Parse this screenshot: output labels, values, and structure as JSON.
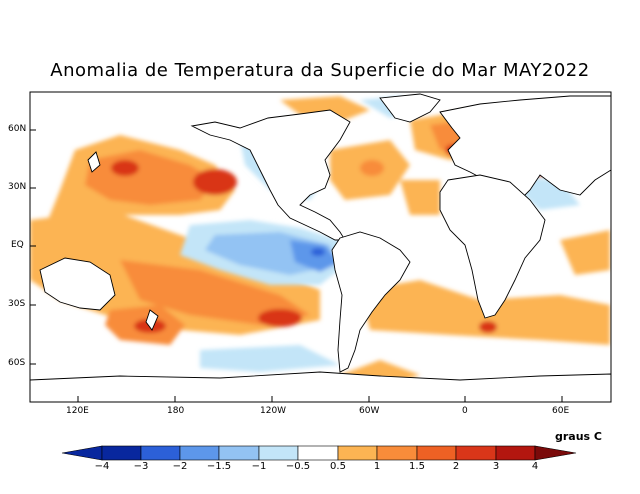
{
  "title": "Anomalia de Temperatura da Superficie do Mar MAY2022",
  "lat_ticks": [
    "60N",
    "30N",
    "EQ",
    "30S",
    "60S"
  ],
  "lon_ticks": [
    "120E",
    "180",
    "120W",
    "60W",
    "0",
    "60E"
  ],
  "colorbar": {
    "units": "graus C",
    "labels": [
      "−4",
      "−3",
      "−2",
      "−1.5",
      "−1",
      "−0.5",
      "0.5",
      "1",
      "1.5",
      "2",
      "3",
      "4"
    ],
    "colors": [
      "#08279e",
      "#2c60d8",
      "#5d97ea",
      "#93c3f3",
      "#c3e5f8",
      "#ffffff",
      "#fcb453",
      "#f88c3a",
      "#ee6124",
      "#d93619",
      "#b3160f",
      "#7a0a0a"
    ]
  }
}
